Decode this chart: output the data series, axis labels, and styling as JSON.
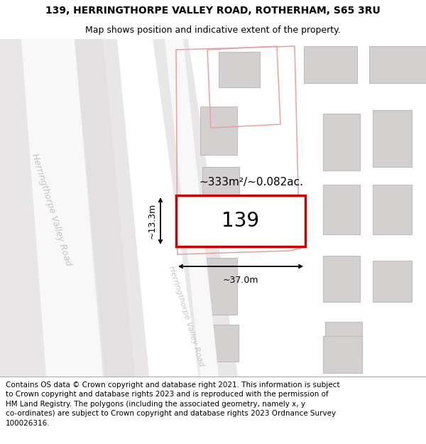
{
  "title_line1": "139, HERRINGTHORPE VALLEY ROAD, ROTHERHAM, S65 3RU",
  "title_line2": "Map shows position and indicative extent of the property.",
  "footer_text": "Contains OS data © Crown copyright and database right 2021. This information is subject\nto Crown copyright and database rights 2023 and is reproduced with the permission of\nHM Land Registry. The polygons (including the associated geometry, namely x, y\nco-ordinates) are subject to Crown copyright and database rights 2023 Ordnance Survey\n100026316.",
  "area_label": "~333m²/~0.082ac.",
  "number_label": "139",
  "width_label": "~37.0m",
  "height_label": "~13.3m",
  "road_label_far": "Herringthorpe Valley Road",
  "road_label_near": "Herringthorpe Valley Road",
  "header_bg": "#ffffff",
  "footer_bg": "#ffffff",
  "map_bg": "#f0eeee",
  "road_light": "#e8e6e6",
  "road_white": "#f8f8f8",
  "building_fill": "#d4d0d0",
  "building_edge": "#c0bcbc",
  "red_main": "#cc0000",
  "red_faint": "#e8a0a0",
  "road_label_color": "#c8c4c4",
  "title_fontsize": 10,
  "subtitle_fontsize": 9,
  "footer_fontsize": 7.5,
  "area_fontsize": 11,
  "number_fontsize": 20,
  "measure_fontsize": 9,
  "road_fontsize": 9
}
